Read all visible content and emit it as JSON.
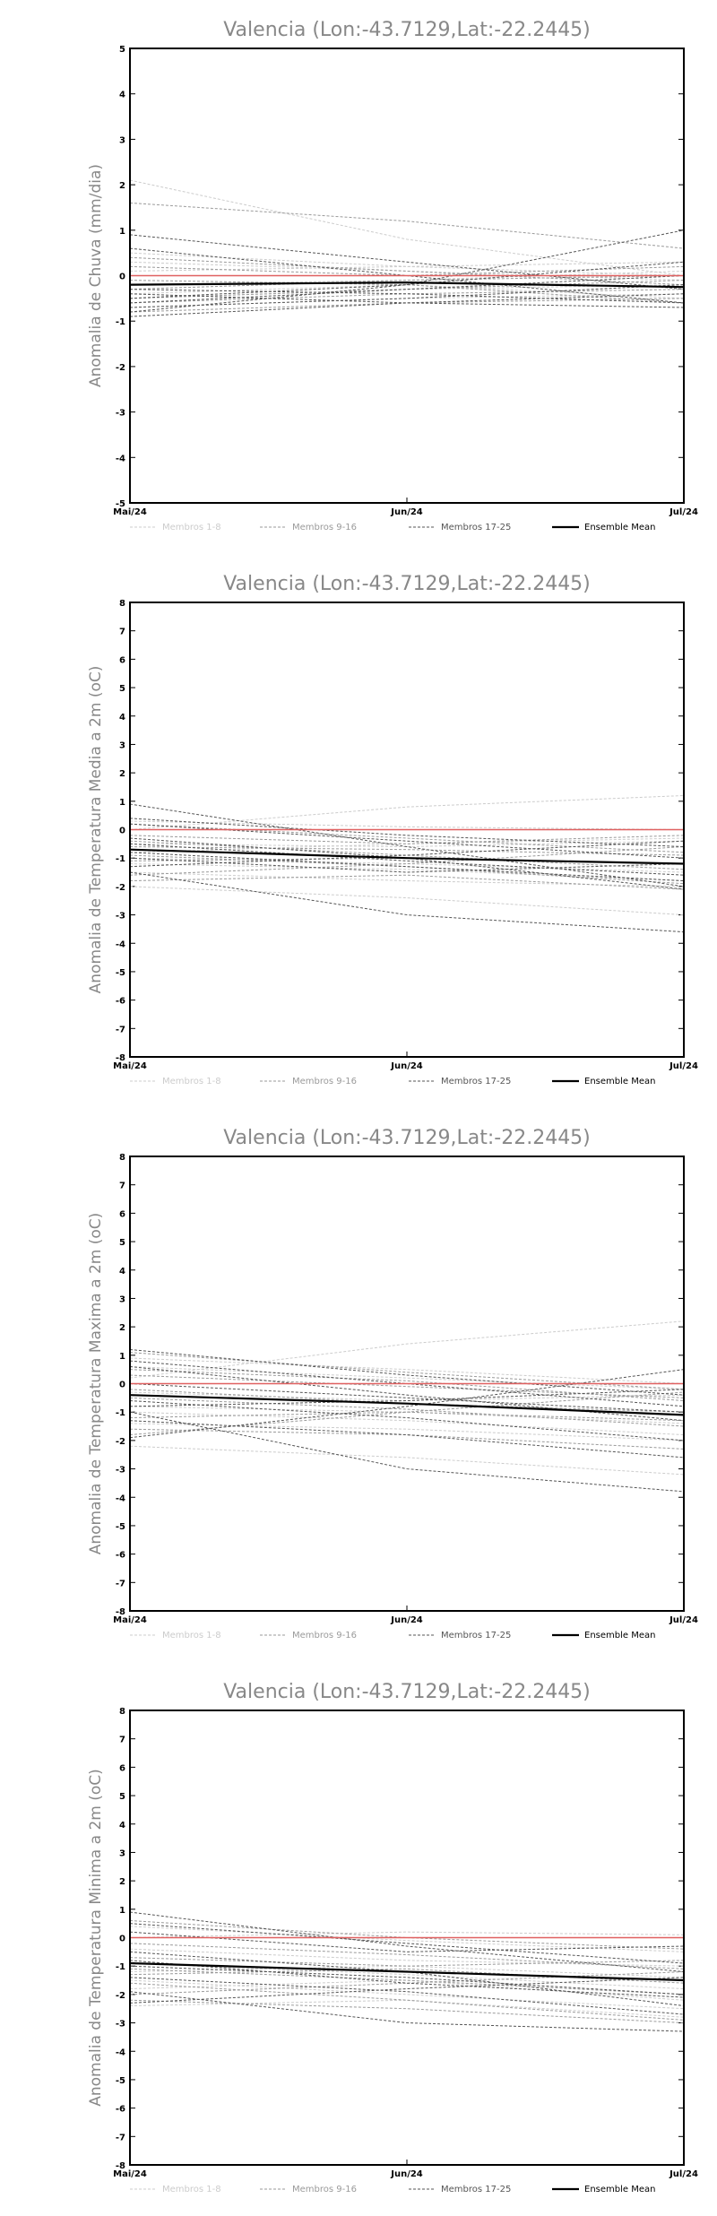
{
  "chart_data": [
    {
      "type": "line",
      "title": "Valencia (Lon:-43.7129,Lat:-22.2445)",
      "ylabel": "Anomalia de Chuva (mm/dia)",
      "xlabel": "",
      "x": [
        "Mai/24",
        "Jun/24",
        "Jul/24"
      ],
      "ylim": [
        -5,
        5
      ],
      "yticks": [
        -5,
        -4,
        -3,
        -2,
        -1,
        0,
        1,
        2,
        3,
        4,
        5
      ],
      "legend": [
        "Membros 1-8",
        "Membros 9-16",
        "Membros 17-25",
        "Ensemble Mean"
      ],
      "colors": {
        "group1": "#cccccc",
        "group2": "#9a9a9a",
        "group3": "#555555",
        "mean": "#000000",
        "zero": "#e06060"
      },
      "mean": [
        -0.2,
        -0.15,
        -0.25
      ],
      "series": [
        {
          "group": 1,
          "values": [
            2.1,
            0.8,
            0.0
          ]
        },
        {
          "group": 1,
          "values": [
            0.3,
            0.1,
            -0.1
          ]
        },
        {
          "group": 1,
          "values": [
            -0.2,
            -0.1,
            0.1
          ]
        },
        {
          "group": 1,
          "values": [
            -0.5,
            -0.3,
            -0.2
          ]
        },
        {
          "group": 1,
          "values": [
            0.5,
            0.2,
            0.0
          ]
        },
        {
          "group": 1,
          "values": [
            -0.7,
            -0.5,
            -0.4
          ]
        },
        {
          "group": 1,
          "values": [
            0.1,
            0.2,
            0.3
          ]
        },
        {
          "group": 1,
          "values": [
            -0.4,
            -0.2,
            -0.5
          ]
        },
        {
          "group": 2,
          "values": [
            1.6,
            1.2,
            0.6
          ]
        },
        {
          "group": 2,
          "values": [
            0.2,
            0.0,
            0.2
          ]
        },
        {
          "group": 2,
          "values": [
            -0.6,
            -0.4,
            -0.3
          ]
        },
        {
          "group": 2,
          "values": [
            -0.1,
            -0.2,
            -0.6
          ]
        },
        {
          "group": 2,
          "values": [
            -0.3,
            -0.1,
            0.0
          ]
        },
        {
          "group": 2,
          "values": [
            -0.8,
            -0.6,
            -0.5
          ]
        },
        {
          "group": 2,
          "values": [
            0.4,
            0.1,
            -0.2
          ]
        },
        {
          "group": 2,
          "values": [
            -0.5,
            -0.3,
            -0.1
          ]
        },
        {
          "group": 3,
          "values": [
            0.9,
            0.3,
            -0.3
          ]
        },
        {
          "group": 3,
          "values": [
            -0.8,
            -0.2,
            1.0
          ]
        },
        {
          "group": 3,
          "values": [
            0.6,
            0.0,
            -0.6
          ]
        },
        {
          "group": 3,
          "values": [
            -0.3,
            -0.4,
            -0.6
          ]
        },
        {
          "group": 3,
          "values": [
            -0.9,
            -0.6,
            -0.4
          ]
        },
        {
          "group": 3,
          "values": [
            -0.5,
            -0.2,
            0.3
          ]
        },
        {
          "group": 3,
          "values": [
            -0.7,
            -0.5,
            -0.2
          ]
        },
        {
          "group": 3,
          "values": [
            -0.4,
            -0.6,
            -0.7
          ]
        },
        {
          "group": 3,
          "values": [
            -0.6,
            -0.3,
            0.0
          ]
        }
      ]
    },
    {
      "type": "line",
      "title": "Valencia (Lon:-43.7129,Lat:-22.2445)",
      "ylabel": "Anomalia de Temperatura Media a 2m (oC)",
      "xlabel": "",
      "x": [
        "Mai/24",
        "Jun/24",
        "Jul/24"
      ],
      "ylim": [
        -8,
        8
      ],
      "yticks": [
        -8,
        -7,
        -6,
        -5,
        -4,
        -3,
        -2,
        -1,
        0,
        1,
        2,
        3,
        4,
        5,
        6,
        7,
        8
      ],
      "legend": [
        "Membros 1-8",
        "Membros 9-16",
        "Membros 17-25",
        "Ensemble Mean"
      ],
      "colors": {
        "group1": "#cccccc",
        "group2": "#9a9a9a",
        "group3": "#555555",
        "mean": "#000000",
        "zero": "#e06060"
      },
      "mean": [
        -0.7,
        -1.0,
        -1.2
      ],
      "series": [
        {
          "group": 1,
          "values": [
            0.0,
            0.8,
            1.2
          ]
        },
        {
          "group": 1,
          "values": [
            -2.0,
            -2.4,
            -3.0
          ]
        },
        {
          "group": 1,
          "values": [
            -1.0,
            -1.2,
            -1.5
          ]
        },
        {
          "group": 1,
          "values": [
            -0.5,
            -0.6,
            -0.4
          ]
        },
        {
          "group": 1,
          "values": [
            0.3,
            0.1,
            0.0
          ]
        },
        {
          "group": 1,
          "values": [
            -1.5,
            -1.8,
            -2.0
          ]
        },
        {
          "group": 1,
          "values": [
            -0.8,
            -0.5,
            -0.3
          ]
        },
        {
          "group": 1,
          "values": [
            -1.2,
            -1.4,
            -1.8
          ]
        },
        {
          "group": 2,
          "values": [
            -1.6,
            -1.2,
            -0.6
          ]
        },
        {
          "group": 2,
          "values": [
            0.2,
            -0.3,
            -0.8
          ]
        },
        {
          "group": 2,
          "values": [
            -0.4,
            -0.9,
            -1.4
          ]
        },
        {
          "group": 2,
          "values": [
            -1.1,
            -1.0,
            -1.2
          ]
        },
        {
          "group": 2,
          "values": [
            -0.2,
            -0.5,
            -0.2
          ]
        },
        {
          "group": 2,
          "values": [
            -1.8,
            -1.6,
            -2.1
          ]
        },
        {
          "group": 2,
          "values": [
            -0.9,
            -1.3,
            -1.9
          ]
        },
        {
          "group": 2,
          "values": [
            -0.6,
            -0.7,
            -0.9
          ]
        },
        {
          "group": 3,
          "values": [
            0.9,
            -0.6,
            -2.0
          ]
        },
        {
          "group": 3,
          "values": [
            -1.5,
            -3.0,
            -3.6
          ]
        },
        {
          "group": 3,
          "values": [
            0.4,
            -0.2,
            -0.6
          ]
        },
        {
          "group": 3,
          "values": [
            -0.8,
            -1.3,
            -1.8
          ]
        },
        {
          "group": 3,
          "values": [
            -1.3,
            -0.9,
            -0.4
          ]
        },
        {
          "group": 3,
          "values": [
            -0.3,
            -1.0,
            -2.1
          ]
        },
        {
          "group": 3,
          "values": [
            -1.0,
            -1.5,
            -1.2
          ]
        },
        {
          "group": 3,
          "values": [
            0.2,
            -0.4,
            -1.0
          ]
        },
        {
          "group": 3,
          "values": [
            -0.5,
            -1.1,
            -1.6
          ]
        }
      ]
    },
    {
      "type": "line",
      "title": "Valencia (Lon:-43.7129,Lat:-22.2445)",
      "ylabel": "Anomalia de Temperatura Maxima a 2m (oC)",
      "xlabel": "",
      "x": [
        "Mai/24",
        "Jun/24",
        "Jul/24"
      ],
      "ylim": [
        -8,
        8
      ],
      "yticks": [
        -8,
        -7,
        -6,
        -5,
        -4,
        -3,
        -2,
        -1,
        0,
        1,
        2,
        3,
        4,
        5,
        6,
        7,
        8
      ],
      "legend": [
        "Membros 1-8",
        "Membros 9-16",
        "Membros 17-25",
        "Ensemble Mean"
      ],
      "colors": {
        "group1": "#cccccc",
        "group2": "#9a9a9a",
        "group3": "#555555",
        "mean": "#000000",
        "zero": "#e06060"
      },
      "mean": [
        -0.4,
        -0.7,
        -1.1
      ],
      "series": [
        {
          "group": 1,
          "values": [
            0.2,
            1.4,
            2.2
          ]
        },
        {
          "group": 1,
          "values": [
            -2.2,
            -2.6,
            -3.2
          ]
        },
        {
          "group": 1,
          "values": [
            -0.8,
            -1.0,
            -1.4
          ]
        },
        {
          "group": 1,
          "values": [
            0.6,
            0.2,
            -0.2
          ]
        },
        {
          "group": 1,
          "values": [
            -0.3,
            -0.6,
            -0.4
          ]
        },
        {
          "group": 1,
          "values": [
            -1.4,
            -1.6,
            -2.0
          ]
        },
        {
          "group": 1,
          "values": [
            0.9,
            0.5,
            0.0
          ]
        },
        {
          "group": 1,
          "values": [
            -1.0,
            -1.3,
            -1.8
          ]
        },
        {
          "group": 2,
          "values": [
            -1.8,
            -1.0,
            -0.3
          ]
        },
        {
          "group": 2,
          "values": [
            1.1,
            0.4,
            -0.2
          ]
        },
        {
          "group": 2,
          "values": [
            -0.5,
            -0.9,
            -1.5
          ]
        },
        {
          "group": 2,
          "values": [
            -1.2,
            -1.0,
            -1.3
          ]
        },
        {
          "group": 2,
          "values": [
            0.3,
            -0.1,
            -0.5
          ]
        },
        {
          "group": 2,
          "values": [
            -1.6,
            -1.8,
            -2.3
          ]
        },
        {
          "group": 2,
          "values": [
            -0.2,
            -0.7,
            -1.0
          ]
        },
        {
          "group": 2,
          "values": [
            0.5,
            0.1,
            -0.6
          ]
        },
        {
          "group": 3,
          "values": [
            1.2,
            0.3,
            -0.4
          ]
        },
        {
          "group": 3,
          "values": [
            -1.9,
            -0.8,
            0.5
          ]
        },
        {
          "group": 3,
          "values": [
            -1.0,
            -3.0,
            -3.8
          ]
        },
        {
          "group": 3,
          "values": [
            0.6,
            -0.4,
            -1.3
          ]
        },
        {
          "group": 3,
          "values": [
            -0.6,
            -1.2,
            -2.0
          ]
        },
        {
          "group": 3,
          "values": [
            0.0,
            -0.5,
            -1.0
          ]
        },
        {
          "group": 3,
          "values": [
            -1.3,
            -1.8,
            -2.6
          ]
        },
        {
          "group": 3,
          "values": [
            0.8,
            0.0,
            -0.8
          ]
        },
        {
          "group": 3,
          "values": [
            -0.8,
            -0.6,
            -0.2
          ]
        }
      ]
    },
    {
      "type": "line",
      "title": "Valencia (Lon:-43.7129,Lat:-22.2445)",
      "ylabel": "Anomalia de Temperatura Minima a 2m (oC)",
      "xlabel": "",
      "x": [
        "Mai/24",
        "Jun/24",
        "Jul/24"
      ],
      "ylim": [
        -8,
        8
      ],
      "yticks": [
        -8,
        -7,
        -6,
        -5,
        -4,
        -3,
        -2,
        -1,
        0,
        1,
        2,
        3,
        4,
        5,
        6,
        7,
        8
      ],
      "legend": [
        "Membros 1-8",
        "Membros 9-16",
        "Membros 17-25",
        "Ensemble Mean"
      ],
      "colors": {
        "group1": "#cccccc",
        "group2": "#9a9a9a",
        "group3": "#555555",
        "mean": "#000000",
        "zero": "#e06060"
      },
      "mean": [
        -0.9,
        -1.2,
        -1.5
      ],
      "series": [
        {
          "group": 1,
          "values": [
            0.0,
            0.2,
            0.1
          ]
        },
        {
          "group": 1,
          "values": [
            -2.4,
            -2.2,
            -2.8
          ]
        },
        {
          "group": 1,
          "values": [
            -1.2,
            -1.0,
            -1.4
          ]
        },
        {
          "group": 1,
          "values": [
            -0.4,
            -0.8,
            -1.0
          ]
        },
        {
          "group": 1,
          "values": [
            -1.8,
            -1.5,
            -2.2
          ]
        },
        {
          "group": 1,
          "values": [
            0.4,
            -0.1,
            -0.5
          ]
        },
        {
          "group": 1,
          "values": [
            -0.9,
            -1.3,
            -1.8
          ]
        },
        {
          "group": 1,
          "values": [
            -1.5,
            -2.0,
            -2.5
          ]
        },
        {
          "group": 2,
          "values": [
            -2.0,
            -1.6,
            -1.2
          ]
        },
        {
          "group": 2,
          "values": [
            0.6,
            0.0,
            -0.4
          ]
        },
        {
          "group": 2,
          "values": [
            -1.1,
            -1.5,
            -2.0
          ]
        },
        {
          "group": 2,
          "values": [
            -0.7,
            -1.0,
            -0.8
          ]
        },
        {
          "group": 2,
          "values": [
            -1.6,
            -2.2,
            -2.9
          ]
        },
        {
          "group": 2,
          "values": [
            -0.2,
            -0.6,
            -1.1
          ]
        },
        {
          "group": 2,
          "values": [
            -1.3,
            -1.1,
            -1.6
          ]
        },
        {
          "group": 2,
          "values": [
            -2.2,
            -2.5,
            -3.0
          ]
        },
        {
          "group": 3,
          "values": [
            0.9,
            -0.3,
            -1.2
          ]
        },
        {
          "group": 3,
          "values": [
            -1.9,
            -3.0,
            -3.3
          ]
        },
        {
          "group": 3,
          "values": [
            0.5,
            -0.2,
            -0.9
          ]
        },
        {
          "group": 3,
          "values": [
            -1.0,
            -1.4,
            -2.0
          ]
        },
        {
          "group": 3,
          "values": [
            -2.3,
            -1.8,
            -1.4
          ]
        },
        {
          "group": 3,
          "values": [
            -0.5,
            -1.2,
            -2.4
          ]
        },
        {
          "group": 3,
          "values": [
            -1.4,
            -1.9,
            -2.7
          ]
        },
        {
          "group": 3,
          "values": [
            0.2,
            -0.5,
            -0.3
          ]
        },
        {
          "group": 3,
          "values": [
            -0.8,
            -1.6,
            -2.1
          ]
        }
      ]
    }
  ]
}
